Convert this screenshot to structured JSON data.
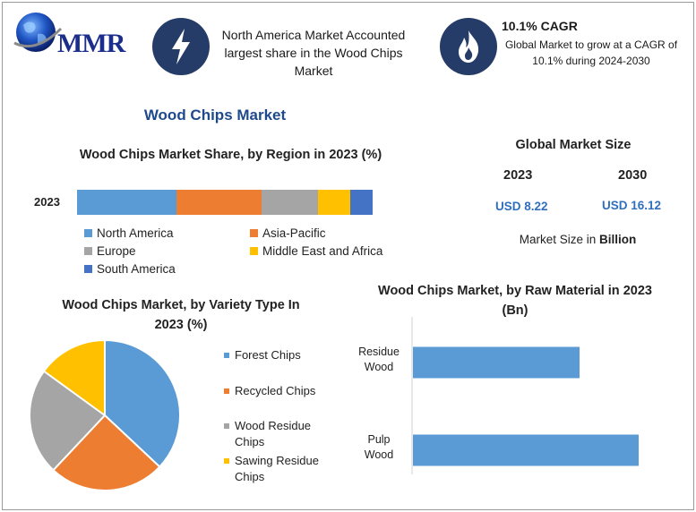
{
  "header": {
    "logo_text": "MMR",
    "region_highlight": "North America Market Accounted largest share in the Wood Chips Market",
    "cagr_title": "10.1% CAGR",
    "cagr_text": "Global Market to grow at a CAGR of 10.1% during 2024-2030"
  },
  "main_title": "Wood Chips Market",
  "colors": {
    "blue": "#5b9bd5",
    "orange": "#ed7d31",
    "gray": "#a5a5a5",
    "yellow": "#ffc000",
    "dark_blue": "#4472c4",
    "icon_bg": "#263c68"
  },
  "icons": [
    "globe-icon",
    "lightning-icon",
    "flame-icon"
  ],
  "market_size": {
    "title": "Global Market Size",
    "year_start": "2023",
    "year_end": "2030",
    "value_start": "USD 8.22",
    "value_end": "USD 16.12",
    "unit_prefix": "Market Size in",
    "unit": "Billion"
  },
  "chart_data": [
    {
      "type": "bar",
      "stacked": true,
      "orientation": "horizontal",
      "title": "Wood Chips Market Share, by Region in 2023 (%)",
      "categories": [
        "2023"
      ],
      "series": [
        {
          "name": "North America",
          "values": [
            33.5
          ]
        },
        {
          "name": "Asia-Pacific",
          "values": [
            29
          ]
        },
        {
          "name": "Europe",
          "values": [
            19
          ]
        },
        {
          "name": "Middle East and Africa",
          "values": [
            11
          ]
        },
        {
          "name": "South America",
          "values": [
            7.5
          ]
        }
      ],
      "legend": "bottom"
    },
    {
      "type": "pie",
      "title": "Wood Chips Market, by Variety Type In 2023 (%)",
      "labels": [
        "Forest Chips",
        "Recycled Chips",
        "Wood Residue Chips",
        "Sawing Residue Chips"
      ],
      "values": [
        37,
        25,
        23,
        15
      ],
      "legend": "right"
    },
    {
      "type": "bar",
      "orientation": "horizontal",
      "title": "Wood Chips Market, by Raw Material in 2023 (Bn)",
      "categories": [
        "Residue Wood",
        "Pulp Wood"
      ],
      "values": [
        3.1,
        4.2
      ],
      "xlim": [
        0,
        4.5
      ],
      "grid": false
    }
  ]
}
